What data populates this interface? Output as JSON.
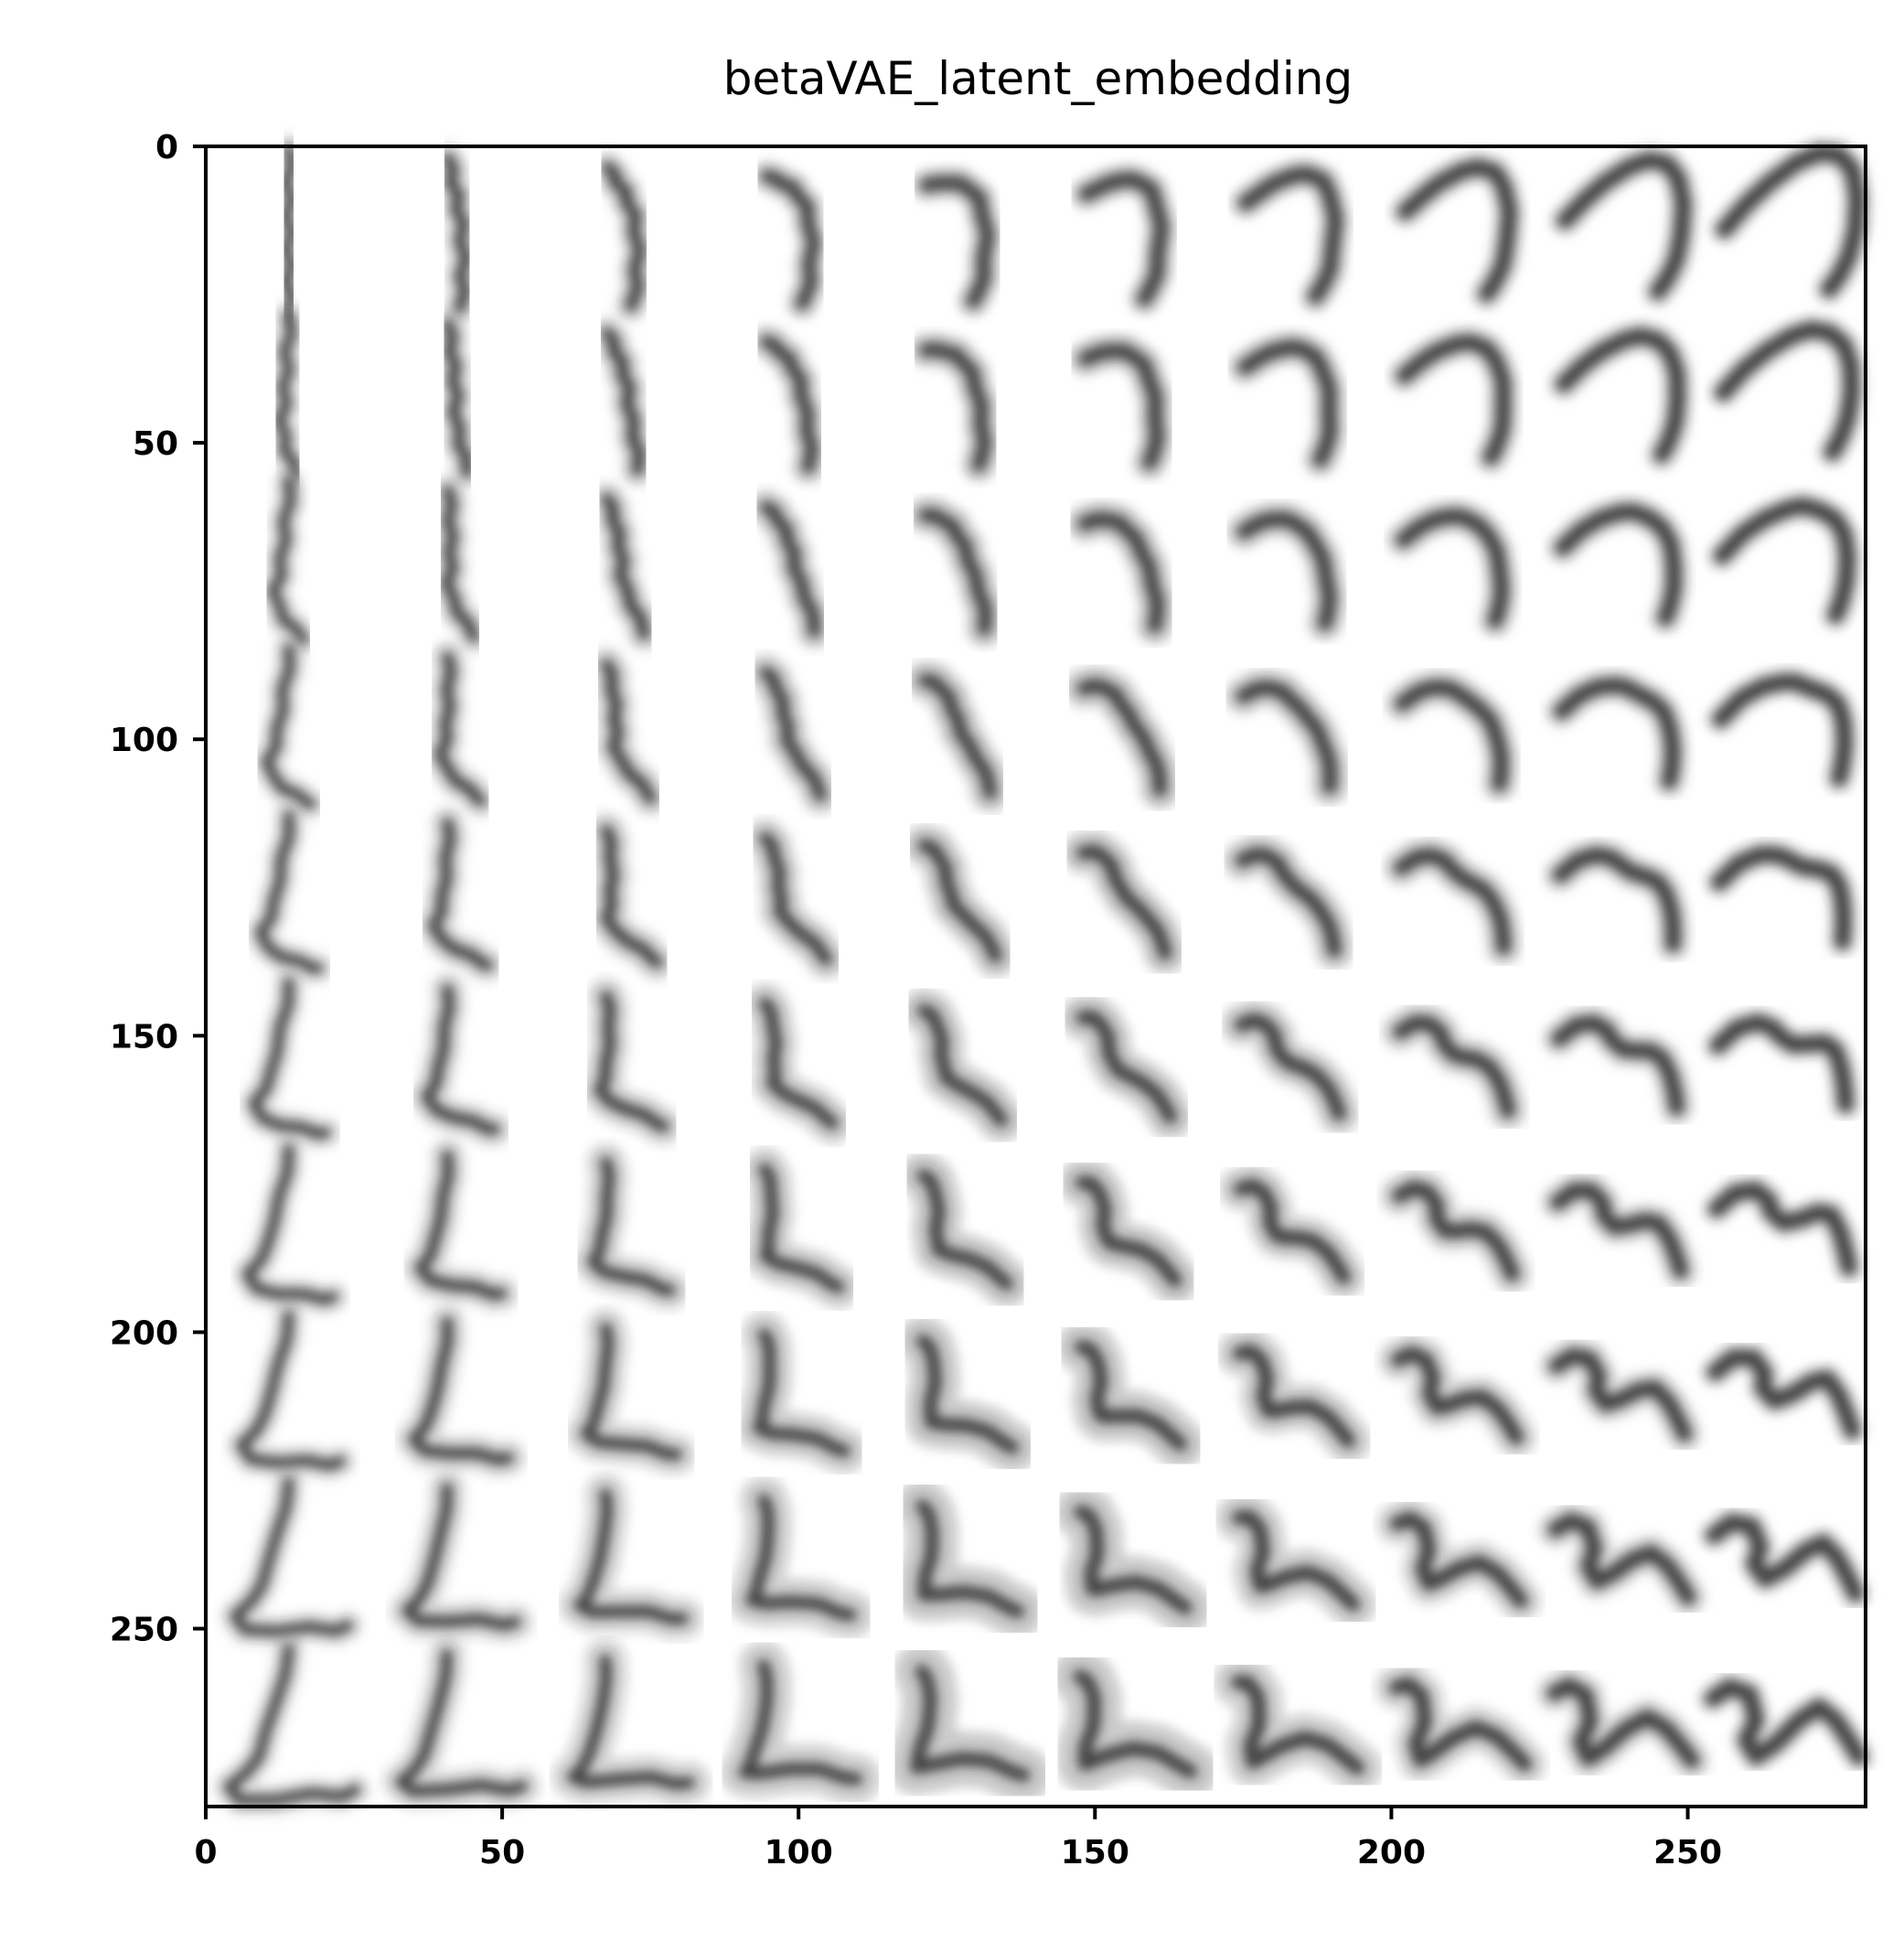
{
  "chart_data": {
    "type": "heatmap",
    "title": "betaVAE_latent_embedding",
    "xlabel": "",
    "ylabel": "",
    "xlim": [
      0,
      280
    ],
    "ylim": [
      280,
      0
    ],
    "x_ticks": [
      0,
      50,
      100,
      150,
      200,
      250
    ],
    "y_ticks": [
      0,
      50,
      100,
      150,
      200,
      250
    ],
    "grid": false,
    "colormap": "gray_r",
    "image_grid": {
      "rows": 10,
      "cols": 10,
      "cell_size": 28
    }
  }
}
